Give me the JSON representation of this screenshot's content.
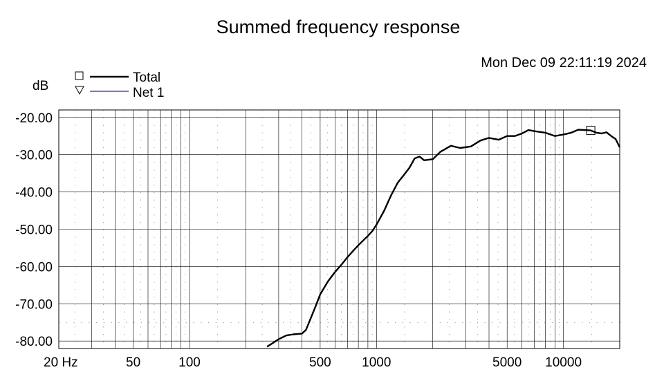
{
  "chart_data": {
    "type": "line",
    "title": "Summed frequency response",
    "timestamp": "Mon Dec 09 22:11:19 2024",
    "ylabel": "dB",
    "xscale": "log",
    "xlim": [
      20,
      20000
    ],
    "ylim": [
      -82,
      -18
    ],
    "grid": true,
    "legend_position": "top-left",
    "x_tick_labels": [
      "20 Hz",
      "50",
      "100",
      "500",
      "1000",
      "5000",
      "10000"
    ],
    "x_tick_values": [
      20,
      50,
      100,
      500,
      1000,
      5000,
      10000
    ],
    "y_tick_labels": [
      "-20.00",
      "-30.00",
      "-40.00",
      "-50.00",
      "-60.00",
      "-70.00",
      "-80.00"
    ],
    "y_tick_values": [
      -20,
      -30,
      -40,
      -50,
      -60,
      -70,
      -80
    ],
    "series": [
      {
        "name": "Total",
        "marker": "□",
        "color": "#000000",
        "x": [
          260,
          280,
          300,
          330,
          360,
          400,
          420,
          440,
          470,
          500,
          550,
          600,
          650,
          700,
          750,
          800,
          850,
          900,
          950,
          1000,
          1100,
          1200,
          1300,
          1400,
          1500,
          1600,
          1700,
          1800,
          2000,
          2200,
          2500,
          2800,
          3200,
          3600,
          4000,
          4500,
          5000,
          5500,
          6000,
          6500,
          7000,
          8000,
          9000,
          10000,
          11000,
          12000,
          13000,
          14000,
          15000,
          16000,
          17000,
          18000,
          19000,
          20000
        ],
        "y": [
          -81.5,
          -80.5,
          -79.5,
          -78.5,
          -78.2,
          -78.0,
          -77.0,
          -74.5,
          -71.0,
          -67.5,
          -64.0,
          -61.5,
          -59.5,
          -57.5,
          -55.8,
          -54.3,
          -53.0,
          -51.8,
          -50.5,
          -48.8,
          -45.0,
          -40.8,
          -37.5,
          -35.5,
          -33.5,
          -31.0,
          -30.5,
          -31.5,
          -31.2,
          -29.2,
          -27.6,
          -28.2,
          -27.8,
          -26.2,
          -25.5,
          -26.0,
          -25.0,
          -25.0,
          -24.3,
          -23.4,
          -23.7,
          -24.1,
          -25.0,
          -24.6,
          -24.1,
          -23.3,
          -23.4,
          -23.5,
          -24.1,
          -24.3,
          -24.0,
          -25.0,
          -25.8,
          -28.0
        ]
      },
      {
        "name": "Net 1",
        "marker": "▽",
        "color": "#1f2bb0",
        "x": [],
        "y": []
      }
    ]
  }
}
